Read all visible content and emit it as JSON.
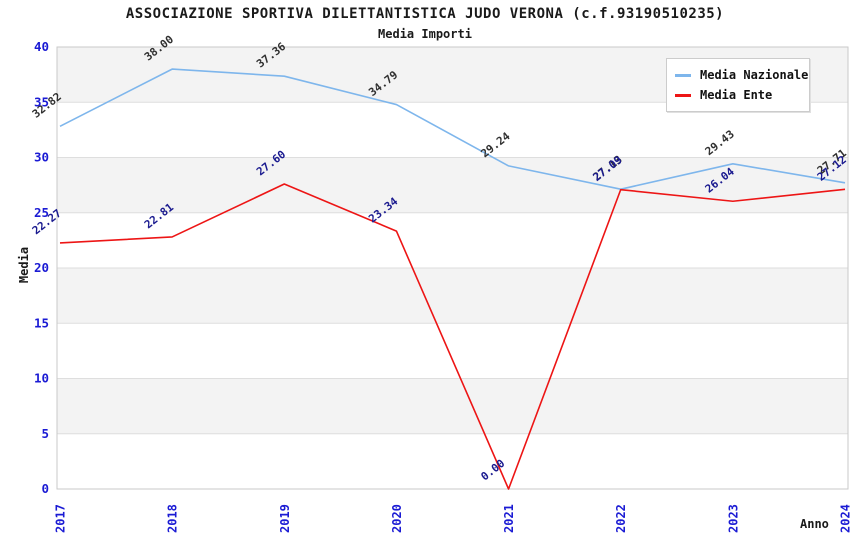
{
  "title": "ASSOCIAZIONE SPORTIVA DILETTANTISTICA JUDO VERONA (c.f.93190510235)",
  "subtitle": "Media Importi",
  "axes": {
    "y_label": "Media",
    "x_label": "Anno",
    "y_ticks": [
      0,
      5,
      10,
      15,
      20,
      25,
      30,
      35,
      40
    ],
    "x_ticks": [
      "2017",
      "2018",
      "2019",
      "2020",
      "2021",
      "2022",
      "2023",
      "2024"
    ]
  },
  "legend": {
    "items": [
      {
        "label": "Media Nazionale",
        "color": "#7eb6ec"
      },
      {
        "label": "Media Ente",
        "color": "#ed1515"
      }
    ]
  },
  "colors": {
    "tick_text": "#1b1bd4",
    "band_gray": "#f3f3f3",
    "gridline": "#dedede",
    "plot_border": "#c9c9c9",
    "title_text": "#1a1a1a"
  },
  "chart_data": {
    "type": "line",
    "title": "ASSOCIAZIONE SPORTIVA DILETTANTISTICA JUDO VERONA (c.f.93190510235)",
    "subtitle": "Media Importi",
    "xlabel": "Anno",
    "ylabel": "Media",
    "x": [
      "2017",
      "2018",
      "2019",
      "2020",
      "2021",
      "2022",
      "2023",
      "2024"
    ],
    "series": [
      {
        "name": "Media Nazionale",
        "color": "#7eb6ec",
        "label_color": "#303030",
        "values": [
          32.82,
          38.0,
          37.36,
          34.79,
          29.24,
          27.13,
          29.43,
          27.71
        ]
      },
      {
        "name": "Media Ente",
        "color": "#ed1515",
        "label_color": "#1a1a8f",
        "values": [
          22.27,
          22.81,
          27.6,
          23.34,
          0.0,
          27.09,
          26.04,
          27.12
        ]
      }
    ],
    "ylim": [
      0,
      40
    ],
    "y_tick_step": 5,
    "grid": true,
    "background_bands": "alternating-gray",
    "legend_position": "top-right",
    "data_labels": "rotated, 2 decimals"
  }
}
